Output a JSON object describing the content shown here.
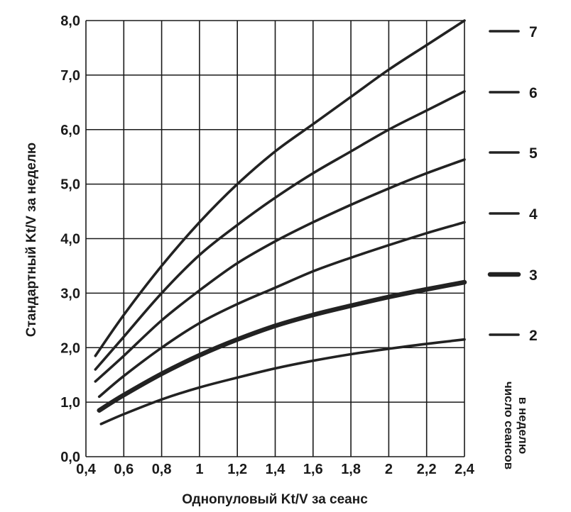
{
  "chart_data": {
    "type": "line",
    "title": "",
    "xlabel": "Однопуловый Kt/V за сеанс",
    "ylabel": "Стандартный Kt/V за неделю",
    "xlim": [
      0.4,
      2.4
    ],
    "ylim": [
      0.0,
      8.0
    ],
    "x_ticks": [
      "0,4",
      "0,6",
      "0,8",
      "1",
      "1,2",
      "1,4",
      "1,6",
      "1,8",
      "2",
      "2,2",
      "2,4"
    ],
    "y_ticks": [
      "0,0",
      "1,0",
      "2,0",
      "3,0",
      "4,0",
      "5,0",
      "6,0",
      "7,0",
      "8,0"
    ],
    "grid": true,
    "legend_position": "right",
    "legend_title_lines": [
      "число сеансов",
      "в неделю"
    ],
    "series": [
      {
        "name": "7",
        "x": [
          0.45,
          0.6,
          0.8,
          1.0,
          1.2,
          1.4,
          1.6,
          1.8,
          2.0,
          2.2,
          2.4
        ],
        "y": [
          1.85,
          2.6,
          3.5,
          4.3,
          5.0,
          5.6,
          6.1,
          6.6,
          7.1,
          7.55,
          8.0
        ]
      },
      {
        "name": "6",
        "x": [
          0.45,
          0.6,
          0.8,
          1.0,
          1.2,
          1.4,
          1.6,
          1.8,
          2.0,
          2.2,
          2.4
        ],
        "y": [
          1.6,
          2.2,
          3.0,
          3.7,
          4.25,
          4.75,
          5.2,
          5.6,
          6.0,
          6.35,
          6.7
        ]
      },
      {
        "name": "5",
        "x": [
          0.45,
          0.6,
          0.8,
          1.0,
          1.2,
          1.4,
          1.6,
          1.8,
          2.0,
          2.2,
          2.4
        ],
        "y": [
          1.38,
          1.85,
          2.5,
          3.05,
          3.55,
          3.95,
          4.3,
          4.62,
          4.92,
          5.2,
          5.45
        ]
      },
      {
        "name": "4",
        "x": [
          0.47,
          0.6,
          0.8,
          1.0,
          1.2,
          1.4,
          1.6,
          1.8,
          2.0,
          2.2,
          2.4
        ],
        "y": [
          1.1,
          1.48,
          2.0,
          2.45,
          2.8,
          3.1,
          3.4,
          3.65,
          3.88,
          4.1,
          4.3
        ]
      },
      {
        "name": "3",
        "x": [
          0.47,
          0.6,
          0.8,
          1.0,
          1.2,
          1.4,
          1.6,
          1.8,
          2.0,
          2.2,
          2.4
        ],
        "y": [
          0.85,
          1.13,
          1.52,
          1.86,
          2.15,
          2.4,
          2.6,
          2.77,
          2.93,
          3.07,
          3.2
        ]
      },
      {
        "name": "2",
        "x": [
          0.48,
          0.6,
          0.8,
          1.0,
          1.2,
          1.4,
          1.6,
          1.8,
          2.0,
          2.2,
          2.4
        ],
        "y": [
          0.6,
          0.78,
          1.05,
          1.27,
          1.45,
          1.62,
          1.76,
          1.88,
          1.98,
          2.07,
          2.15
        ]
      }
    ]
  },
  "styles": {
    "line_color": "#222222",
    "grid_color": "#1a1a1a"
  }
}
